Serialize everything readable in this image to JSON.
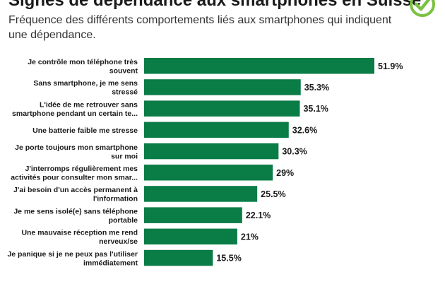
{
  "header": {
    "title": "Signes de dépendance aux smartphones en Suisse",
    "subtitle": "Fréquence des différents comportements liés aux smartphones qui indiquent une dépendance."
  },
  "colors": {
    "bar": "#0a7c46",
    "check": "#7ac142"
  },
  "icon": "checkmark-circle-icon",
  "chart_data": {
    "type": "bar",
    "orientation": "horizontal",
    "title": "Signes de dépendance aux smartphones en Suisse",
    "subtitle": "Fréquence des différents comportements liés aux smartphones qui indiquent une dépendance.",
    "categories": [
      [
        "Je contrôle mon téléphone très",
        "souvent"
      ],
      [
        "Sans smartphone, je me sens",
        "stressé"
      ],
      [
        "L'idée de me retrouver sans",
        "smartphone pendant un certain te..."
      ],
      [
        "Une batterie faible me stresse"
      ],
      [
        "Je porte toujours mon smartphone",
        "sur moi"
      ],
      [
        "J'interromps régulièrement mes",
        "activités pour consulter mon smar..."
      ],
      [
        "J'ai besoin d'un accès permanent à",
        "l'information"
      ],
      [
        "Je me sens isolé(e) sans téléphone",
        "portable"
      ],
      [
        "Une mauvaise réception me rend",
        "nerveux/se"
      ],
      [
        "Je panique si je ne peux pas l'utiliser",
        "immédiatement"
      ]
    ],
    "values": [
      51.9,
      35.3,
      35.1,
      32.6,
      30.3,
      29,
      25.5,
      22.1,
      21,
      15.5
    ],
    "value_labels": [
      "51.9%",
      "35.3%",
      "35.1%",
      "32.6%",
      "30.3%",
      "29%",
      "25.5%",
      "22.1%",
      "21%",
      "15.5%"
    ],
    "xlim": [
      0,
      51.9
    ],
    "grid": false,
    "legend": "none"
  }
}
